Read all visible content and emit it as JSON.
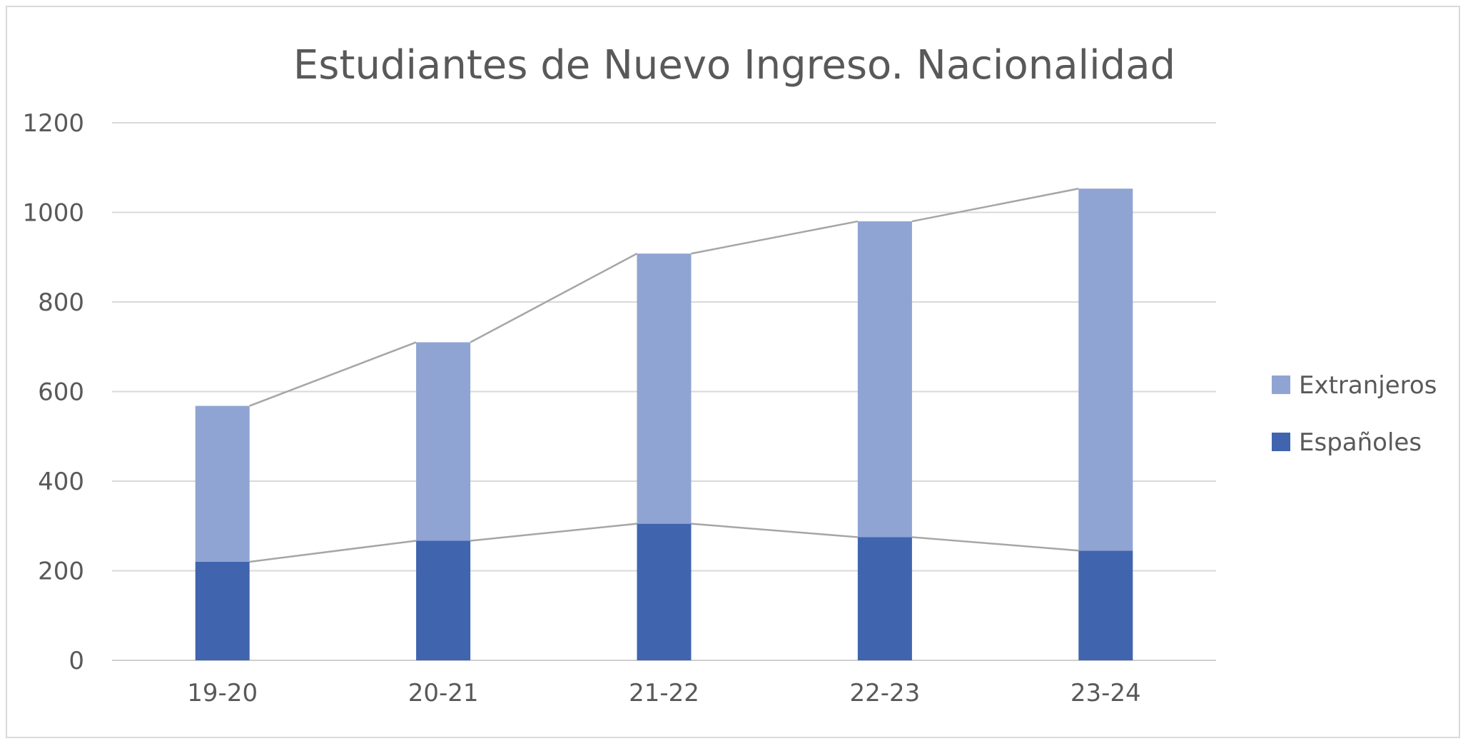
{
  "chart_data": {
    "type": "bar",
    "stacked": true,
    "title": "Estudiantes de Nuevo Ingreso. Nacionalidad",
    "xlabel": "",
    "ylabel": "",
    "categories": [
      "19-20",
      "20-21",
      "21-22",
      "22-23",
      "23-24"
    ],
    "series": [
      {
        "name": "Españoles",
        "color": "#4064ae",
        "values": [
          220,
          267,
          305,
          275,
          245
        ]
      },
      {
        "name": "Extranjeros",
        "color": "#8fa4d2",
        "values": [
          348,
          443,
          603,
          705,
          808
        ]
      }
    ],
    "series_lines": true,
    "series_line_color": "#a6a6a6",
    "ylim": [
      0,
      1200
    ],
    "yticks": [
      "0",
      "200",
      "400",
      "600",
      "800",
      "1000",
      "1200"
    ],
    "grid": true,
    "grid_color": "#d9d9d9",
    "legend": {
      "position": "right",
      "entries": [
        "Extranjeros",
        "Españoles"
      ]
    }
  }
}
